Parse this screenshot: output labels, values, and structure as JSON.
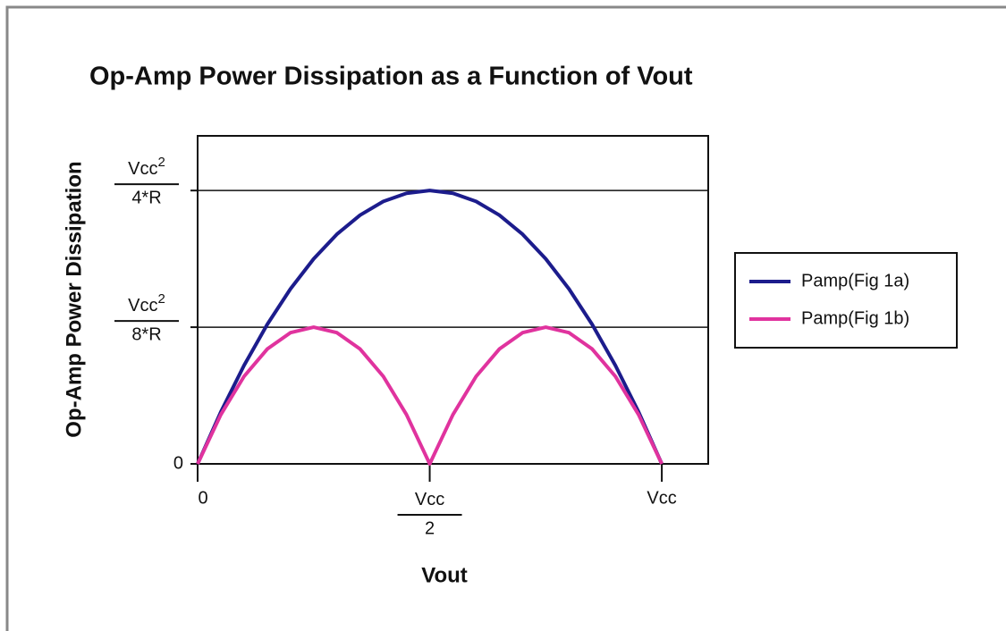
{
  "chart_data": {
    "type": "line",
    "title": "Op-Amp Power Dissipation as a Function of Vout",
    "x_label": "Vout",
    "y_label": "Op-Amp Power Dissipation",
    "x": [
      0,
      0.05,
      0.1,
      0.15,
      0.2,
      0.25,
      0.3,
      0.35,
      0.4,
      0.45,
      0.5,
      0.55,
      0.6,
      0.65,
      0.7,
      0.75,
      0.8,
      0.85,
      0.9,
      0.95,
      1
    ],
    "series": [
      {
        "name": "Pamp(Fig 1a)",
        "color": "#1c1c8c",
        "values": [
          0,
          0.0475,
          0.09,
          0.1275,
          0.16,
          0.1875,
          0.21,
          0.2275,
          0.24,
          0.2475,
          0.25,
          0.2475,
          0.24,
          0.2275,
          0.21,
          0.1875,
          0.16,
          0.1275,
          0.09,
          0.0475,
          0
        ]
      },
      {
        "name": "Pamp(Fig 1b)",
        "color": "#e0339e",
        "values": [
          0,
          0.045,
          0.08,
          0.105,
          0.12,
          0.125,
          0.12,
          0.105,
          0.08,
          0.045,
          0,
          0.045,
          0.08,
          0.105,
          0.12,
          0.125,
          0.12,
          0.105,
          0.08,
          0.045,
          0
        ]
      }
    ],
    "xlim": [
      0,
      1.1
    ],
    "ylim": [
      0,
      0.3
    ],
    "xticks": [
      0,
      {
        "value": 0.5,
        "label": {
          "numerator": "Vcc",
          "denominator": "2"
        }
      },
      {
        "value": 1,
        "label": "Vcc"
      }
    ],
    "yticks": [
      0,
      {
        "value": 0.125,
        "label": {
          "numerator": "Vcc",
          "sup": "2",
          "denominator": "8*R"
        }
      },
      {
        "value": 0.25,
        "label": {
          "numerator": "Vcc",
          "sup": "2",
          "denominator": "4*R"
        }
      }
    ],
    "grid": true,
    "legend": "right"
  }
}
